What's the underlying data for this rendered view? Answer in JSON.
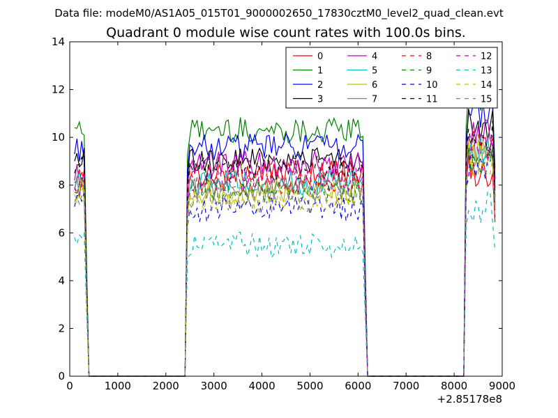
{
  "chart_data": {
    "type": "line",
    "suptitle": "Data file: modeM0/AS1A05_015T01_9000002650_17830cztM0_level2_quad_clean.evt",
    "title": "Quadrant 0 module wise count rates with 100.0s bins.",
    "xlabel": "",
    "ylabel": "",
    "x_offset_label": "+2.85178e8",
    "xlim": [
      0,
      9000
    ],
    "ylim": [
      0,
      14
    ],
    "xticks": [
      0,
      1000,
      2000,
      3000,
      4000,
      5000,
      6000,
      7000,
      8000,
      9000
    ],
    "yticks": [
      0,
      2,
      4,
      6,
      8,
      10,
      12,
      14
    ],
    "legend_position": "top-right",
    "legend_columns": 4,
    "segments": [
      {
        "start": 100,
        "end": 300,
        "zero_after_until": 2400
      },
      {
        "start": 2500,
        "end": 6100,
        "zero_after_until": 8200
      },
      {
        "start": 8300,
        "end": 8800
      }
    ],
    "series": [
      {
        "name": "0",
        "color": "#ff0000",
        "dash": "solid",
        "level": [
          8.3,
          8.5,
          8.6
        ]
      },
      {
        "name": "1",
        "color": "#008000",
        "dash": "solid",
        "level": [
          10.6,
          10.3,
          11.6
        ]
      },
      {
        "name": "2",
        "color": "#0000ff",
        "dash": "solid",
        "level": [
          9.5,
          9.6,
          11.0
        ]
      },
      {
        "name": "3",
        "color": "#000000",
        "dash": "solid",
        "level": [
          9.2,
          9.1,
          10.5
        ]
      },
      {
        "name": "4",
        "color": "#bf00bf",
        "dash": "solid",
        "level": [
          8.4,
          8.9,
          10.0
        ]
      },
      {
        "name": "5",
        "color": "#00bfbf",
        "dash": "solid",
        "level": [
          8.0,
          8.1,
          9.5
        ]
      },
      {
        "name": "6",
        "color": "#bfbf00",
        "dash": "solid",
        "level": [
          7.8,
          7.7,
          9.3
        ]
      },
      {
        "name": "7",
        "color": "#808080",
        "dash": "solid",
        "level": [
          8.0,
          7.9,
          9.4
        ]
      },
      {
        "name": "8",
        "color": "#ff0000",
        "dash": "dashed",
        "level": [
          8.1,
          8.1,
          9.7
        ]
      },
      {
        "name": "9",
        "color": "#008000",
        "dash": "dashed",
        "level": [
          7.9,
          7.7,
          9.1
        ]
      },
      {
        "name": "10",
        "color": "#0000ff",
        "dash": "dashed",
        "level": [
          7.3,
          7.0,
          8.8
        ]
      },
      {
        "name": "11",
        "color": "#000000",
        "dash": "dashed",
        "level": [
          8.7,
          8.7,
          10.1
        ]
      },
      {
        "name": "12",
        "color": "#bf00bf",
        "dash": "dashed",
        "level": [
          8.1,
          8.2,
          9.6
        ]
      },
      {
        "name": "13",
        "color": "#00bfbf",
        "dash": "dashed",
        "level": [
          6.0,
          5.5,
          7.0
        ]
      },
      {
        "name": "14",
        "color": "#bfbf00",
        "dash": "dashed",
        "level": [
          7.6,
          7.4,
          9.0
        ]
      },
      {
        "name": "15",
        "color": "#808080",
        "dash": "dashed",
        "level": [
          7.5,
          7.4,
          9.0
        ]
      }
    ]
  }
}
